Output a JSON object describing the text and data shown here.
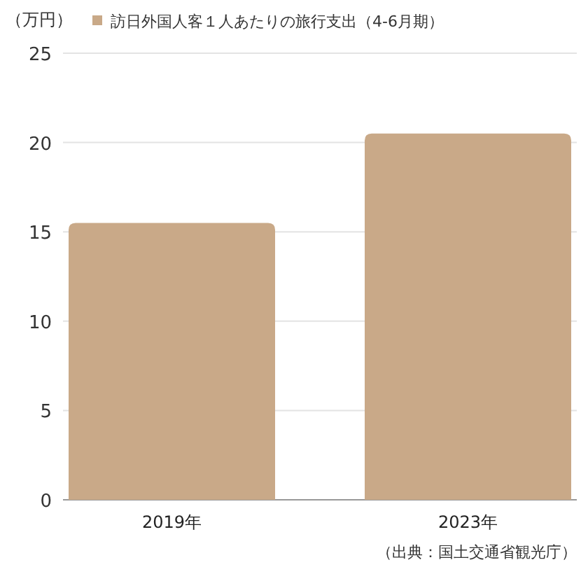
{
  "chart_data": {
    "type": "bar",
    "categories": [
      "2019年",
      "2023年"
    ],
    "series": [
      {
        "name": "訪日外国人客１人あたりの旅行支出（4-6月期）",
        "color": "#c9a988",
        "values": [
          15.5,
          20.5
        ]
      }
    ],
    "ylabel": "（万円）",
    "ylim": [
      0,
      25
    ],
    "yticks": [
      0,
      5,
      10,
      15,
      20,
      25
    ],
    "grid": "y",
    "legend": "top",
    "annotations": [
      "（出典：国土交通省観光庁）"
    ]
  }
}
